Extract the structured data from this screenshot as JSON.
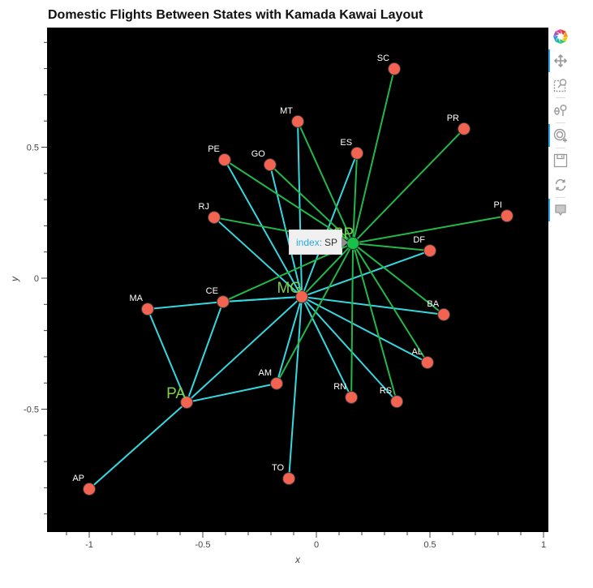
{
  "title": "Domestic Flights Between States with Kamada Kawai Layout",
  "tooltip": {
    "key": "index:",
    "value": "SP"
  },
  "toolbar": {
    "tools": [
      {
        "name": "bokeh-logo",
        "active": false
      },
      {
        "name": "pan-tool",
        "active": true
      },
      {
        "name": "box-zoom-tool",
        "active": false
      },
      {
        "name": "wheel-zoom-tool",
        "active": false
      },
      {
        "name": "tap-tool",
        "active": true
      },
      {
        "name": "save-tool",
        "active": false
      },
      {
        "name": "reset-tool",
        "active": false
      },
      {
        "name": "hover-tool",
        "active": true
      }
    ]
  },
  "colors": {
    "background": "#000000",
    "node_fill": "#f26451",
    "node_highlight": "#18c24a",
    "edge_mg": "#35d8e0",
    "edge_sp": "#22b84a",
    "highlight_label": "#7ad24a",
    "node_label": "#ffffff"
  },
  "chart_data": {
    "type": "network",
    "title": "Domestic Flights Between States with Kamada Kawai Layout",
    "xlabel": "x",
    "ylabel": "y",
    "xlim": [
      -1.19,
      1.02
    ],
    "ylim": [
      -0.97,
      0.96
    ],
    "x_ticks": [
      -1,
      -0.5,
      0,
      0.5,
      1
    ],
    "y_ticks": [
      -0.5,
      0,
      0.5
    ],
    "x_tick_labels": [
      "-1",
      "-0.5",
      "0",
      "0.5",
      "1"
    ],
    "y_tick_labels": [
      "-0.5",
      "0",
      "0.5"
    ],
    "grid": false,
    "background": "#000000",
    "nodes": [
      {
        "id": "SP",
        "x": 0.161,
        "y": 0.133,
        "highlight": true,
        "label_size": "large"
      },
      {
        "id": "MG",
        "x": -0.064,
        "y": -0.071,
        "highlight": false,
        "label_size": "large"
      },
      {
        "id": "PA",
        "x": -0.571,
        "y": -0.474,
        "highlight": false,
        "label_size": "large"
      },
      {
        "id": "SC",
        "x": 0.343,
        "y": 0.799
      },
      {
        "id": "PR",
        "x": 0.65,
        "y": 0.57
      },
      {
        "id": "PI",
        "x": 0.839,
        "y": 0.238
      },
      {
        "id": "DF",
        "x": 0.5,
        "y": 0.105
      },
      {
        "id": "BA",
        "x": 0.561,
        "y": -0.139
      },
      {
        "id": "AL",
        "x": 0.489,
        "y": -0.322
      },
      {
        "id": "RS",
        "x": 0.354,
        "y": -0.471
      },
      {
        "id": "RN",
        "x": 0.154,
        "y": -0.455
      },
      {
        "id": "TO",
        "x": -0.121,
        "y": -0.765
      },
      {
        "id": "AM",
        "x": -0.175,
        "y": -0.402
      },
      {
        "id": "AP",
        "x": -1.0,
        "y": -0.805
      },
      {
        "id": "MA",
        "x": -0.743,
        "y": -0.118
      },
      {
        "id": "CE",
        "x": -0.411,
        "y": -0.09
      },
      {
        "id": "RJ",
        "x": -0.45,
        "y": 0.232
      },
      {
        "id": "PE",
        "x": -0.404,
        "y": 0.452
      },
      {
        "id": "GO",
        "x": -0.204,
        "y": 0.433
      },
      {
        "id": "MT",
        "x": -0.082,
        "y": 0.598
      },
      {
        "id": "ES",
        "x": 0.179,
        "y": 0.477
      }
    ],
    "edges_sp": [
      "SC",
      "PR",
      "PI",
      "DF",
      "BA",
      "AL",
      "RS",
      "RN",
      "AM",
      "MG",
      "CE",
      "RJ",
      "PE",
      "GO",
      "MT",
      "ES"
    ],
    "edges_mg": [
      "SP",
      "DF",
      "BA",
      "AL",
      "RS",
      "RN",
      "TO",
      "AM",
      "PA",
      "CE",
      "RJ",
      "PE",
      "GO",
      "MT",
      "ES"
    ],
    "edges_other": [
      [
        "PA",
        "AP"
      ],
      [
        "PA",
        "AM"
      ],
      [
        "PA",
        "CE"
      ],
      [
        "PA",
        "MA"
      ],
      [
        "MA",
        "CE"
      ]
    ]
  }
}
